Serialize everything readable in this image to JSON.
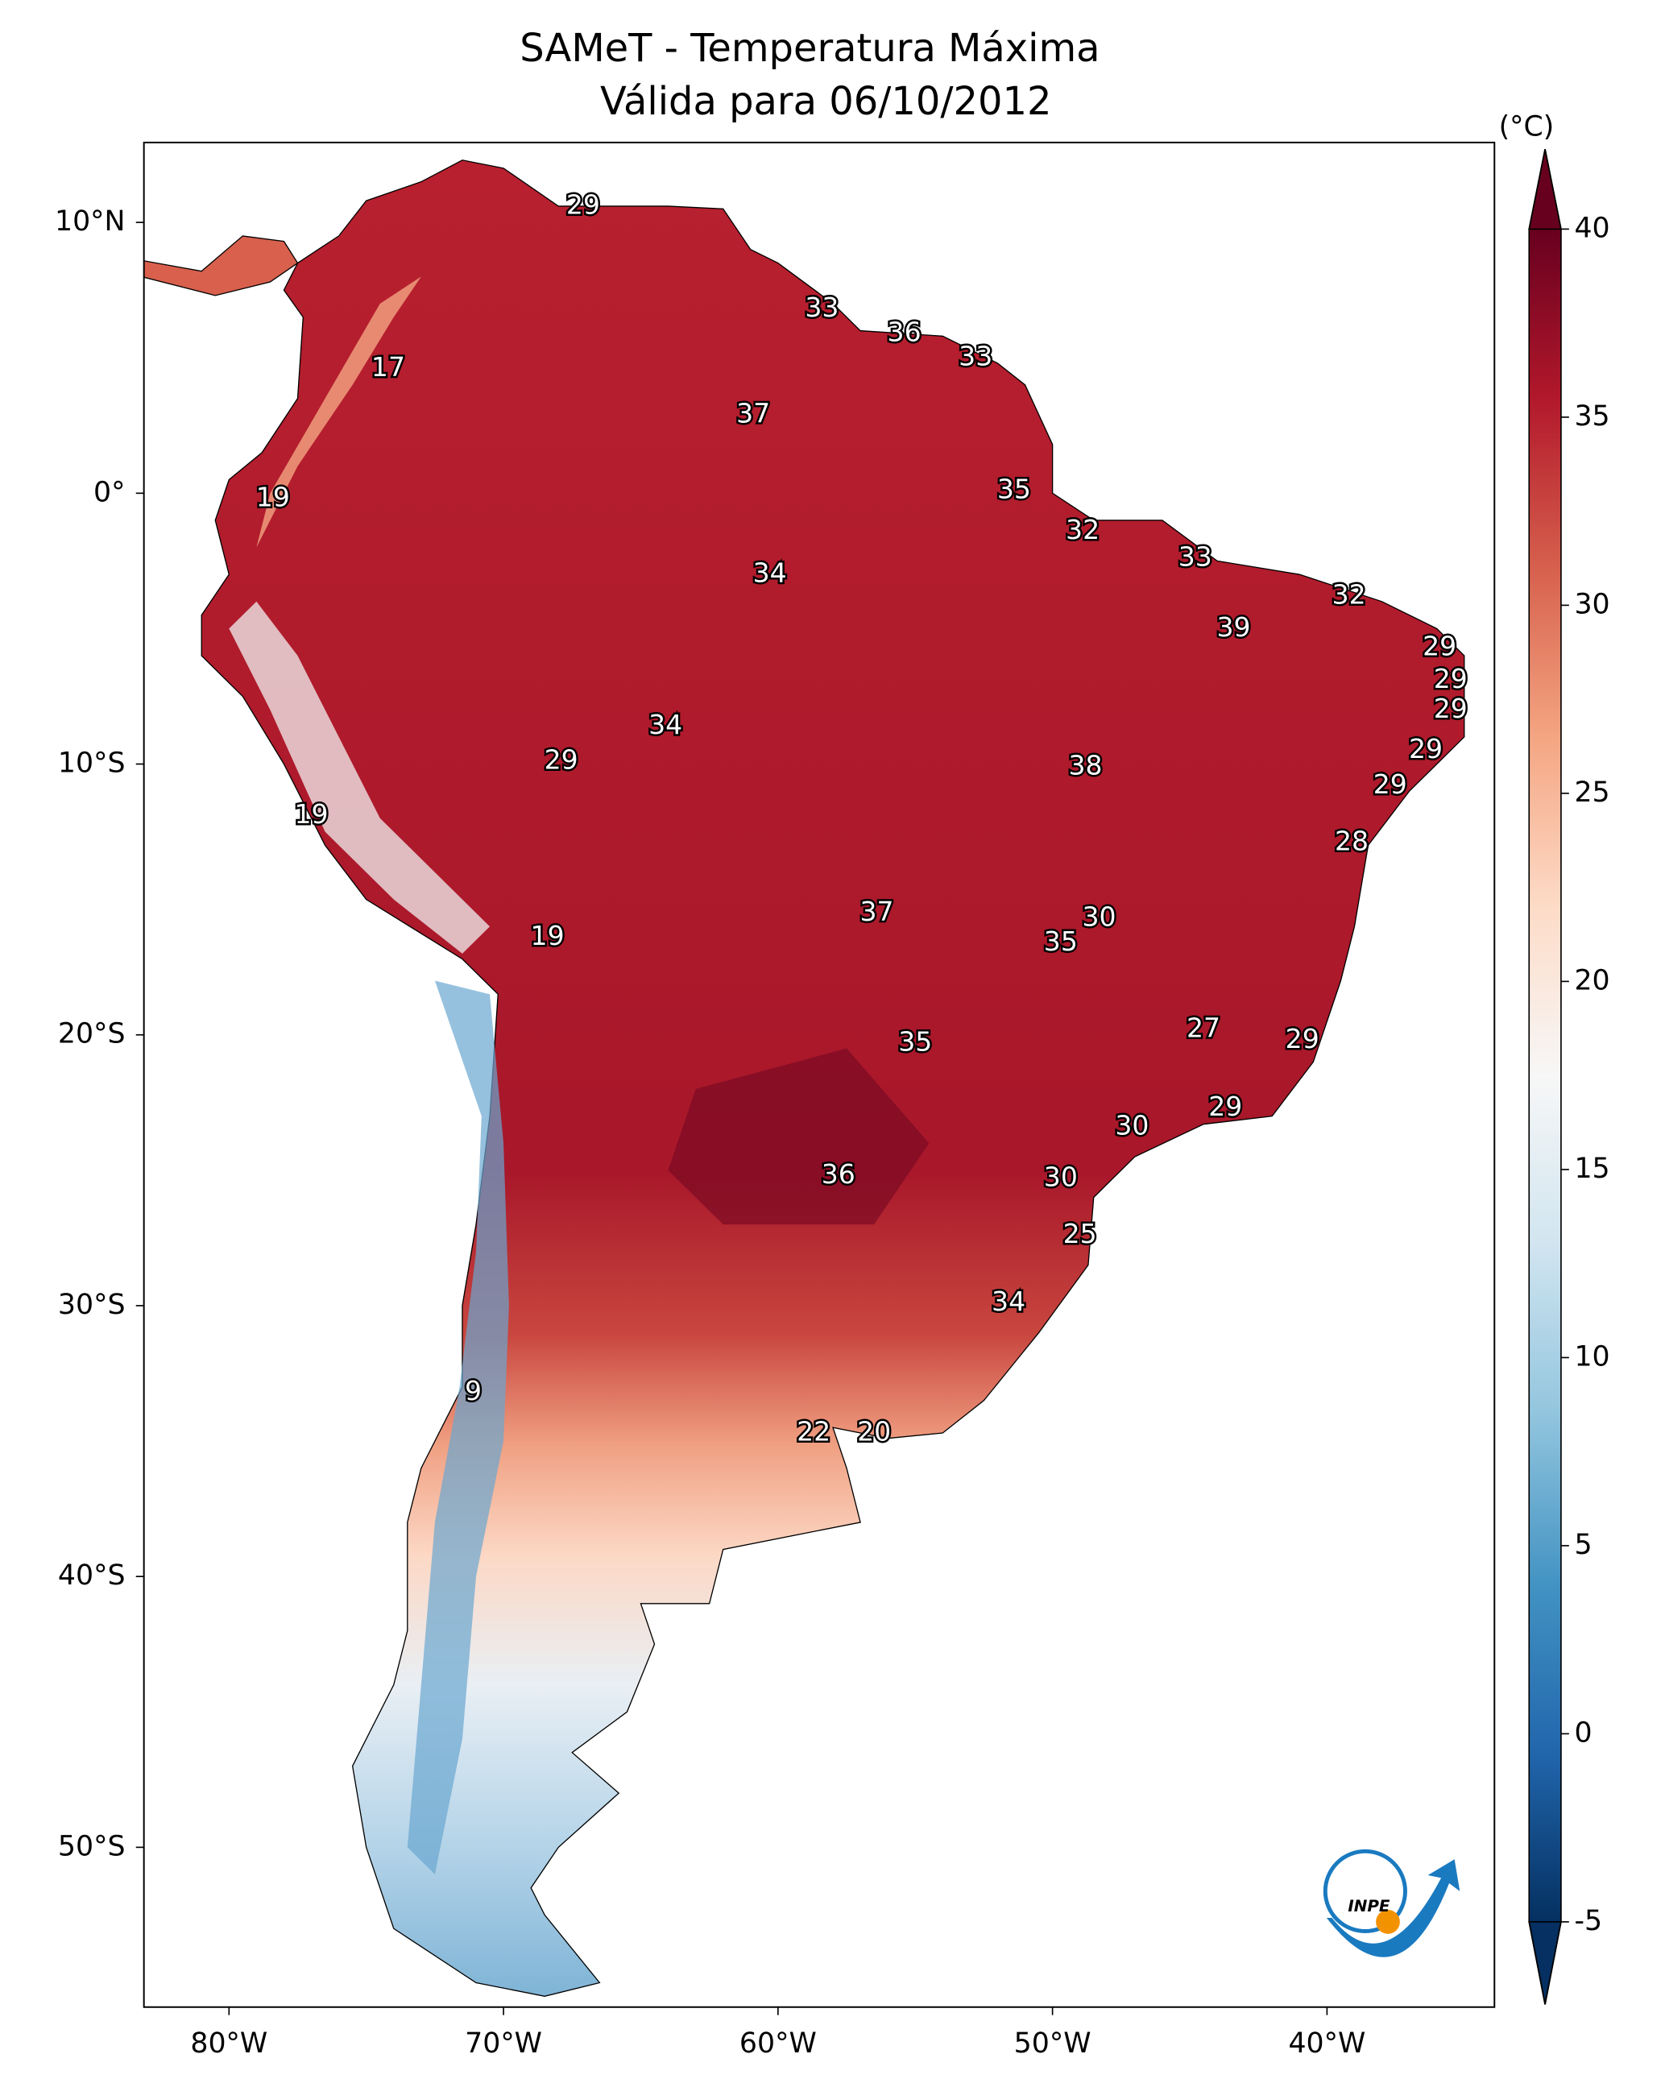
{
  "chart_data": {
    "type": "map",
    "title": "SAMeT - Temperatura Máxima",
    "subtitle": "Válida para 06/10/2012",
    "xlim": [
      -83.1,
      -33.9
    ],
    "ylim": [
      -55.9,
      12.95
    ],
    "xticks": [
      {
        "value": -80,
        "label": "80°W"
      },
      {
        "value": -70,
        "label": "70°W"
      },
      {
        "value": -60,
        "label": "60°W"
      },
      {
        "value": -50,
        "label": "50°W"
      },
      {
        "value": -40,
        "label": "40°W"
      }
    ],
    "yticks": [
      {
        "value": 10,
        "label": "10°N"
      },
      {
        "value": 0,
        "label": "0°"
      },
      {
        "value": -10,
        "label": "10°S"
      },
      {
        "value": -20,
        "label": "20°S"
      },
      {
        "value": -30,
        "label": "30°S"
      },
      {
        "value": -40,
        "label": "40°S"
      },
      {
        "value": -50,
        "label": "50°S"
      }
    ],
    "colorbar": {
      "label": "(°C)",
      "clim": [
        -5,
        40
      ],
      "ticks": [
        -5,
        0,
        5,
        10,
        15,
        20,
        25,
        30,
        35,
        40
      ],
      "extend": "both",
      "colormap": [
        "#053061",
        "#2166ac",
        "#4393c3",
        "#92c5de",
        "#d1e5f0",
        "#f7f7f7",
        "#fddbc7",
        "#f4a582",
        "#d6604d",
        "#b2182b",
        "#67001f"
      ]
    },
    "points": [
      {
        "lon": -67.1,
        "lat": 10.6,
        "value": 29
      },
      {
        "lon": -58.4,
        "lat": 6.8,
        "value": 33
      },
      {
        "lon": -55.4,
        "lat": 5.9,
        "value": 36
      },
      {
        "lon": -52.8,
        "lat": 5.0,
        "value": 33
      },
      {
        "lon": -74.2,
        "lat": 4.6,
        "value": 17
      },
      {
        "lon": -60.9,
        "lat": 2.9,
        "value": 37
      },
      {
        "lon": -51.4,
        "lat": 0.1,
        "value": 35
      },
      {
        "lon": -78.4,
        "lat": -0.2,
        "value": 19
      },
      {
        "lon": -48.9,
        "lat": -1.4,
        "value": 32
      },
      {
        "lon": -44.8,
        "lat": -2.4,
        "value": 33
      },
      {
        "lon": -60.3,
        "lat": -3.0,
        "value": 34
      },
      {
        "lon": -39.2,
        "lat": -3.8,
        "value": 32
      },
      {
        "lon": -43.4,
        "lat": -5.0,
        "value": 39
      },
      {
        "lon": -35.9,
        "lat": -5.7,
        "value": 29
      },
      {
        "lon": -35.5,
        "lat": -6.9,
        "value": 29
      },
      {
        "lon": -35.5,
        "lat": -8.0,
        "value": 29
      },
      {
        "lon": -64.1,
        "lat": -8.6,
        "value": 34
      },
      {
        "lon": -36.4,
        "lat": -9.5,
        "value": 29
      },
      {
        "lon": -67.9,
        "lat": -9.9,
        "value": 29
      },
      {
        "lon": -48.8,
        "lat": -10.1,
        "value": 38
      },
      {
        "lon": -37.7,
        "lat": -10.8,
        "value": 29
      },
      {
        "lon": -77.0,
        "lat": -11.9,
        "value": 19
      },
      {
        "lon": -39.1,
        "lat": -12.9,
        "value": 28
      },
      {
        "lon": -56.4,
        "lat": -15.5,
        "value": 37
      },
      {
        "lon": -48.3,
        "lat": -15.7,
        "value": 30
      },
      {
        "lon": -68.4,
        "lat": -16.4,
        "value": 19
      },
      {
        "lon": -49.7,
        "lat": -16.6,
        "value": 35
      },
      {
        "lon": -44.5,
        "lat": -19.8,
        "value": 27
      },
      {
        "lon": -40.9,
        "lat": -20.2,
        "value": 29
      },
      {
        "lon": -55.0,
        "lat": -20.3,
        "value": 35
      },
      {
        "lon": -43.7,
        "lat": -22.7,
        "value": 29
      },
      {
        "lon": -47.1,
        "lat": -23.4,
        "value": 30
      },
      {
        "lon": -57.8,
        "lat": -25.2,
        "value": 36
      },
      {
        "lon": -49.7,
        "lat": -25.3,
        "value": 30
      },
      {
        "lon": -49.0,
        "lat": -27.4,
        "value": 25
      },
      {
        "lon": -51.6,
        "lat": -29.9,
        "value": 34
      },
      {
        "lon": -71.1,
        "lat": -33.2,
        "value": 9
      },
      {
        "lon": -58.7,
        "lat": -34.7,
        "value": 22
      },
      {
        "lon": -56.5,
        "lat": -34.7,
        "value": 20
      }
    ],
    "logo_text": "INPE"
  }
}
